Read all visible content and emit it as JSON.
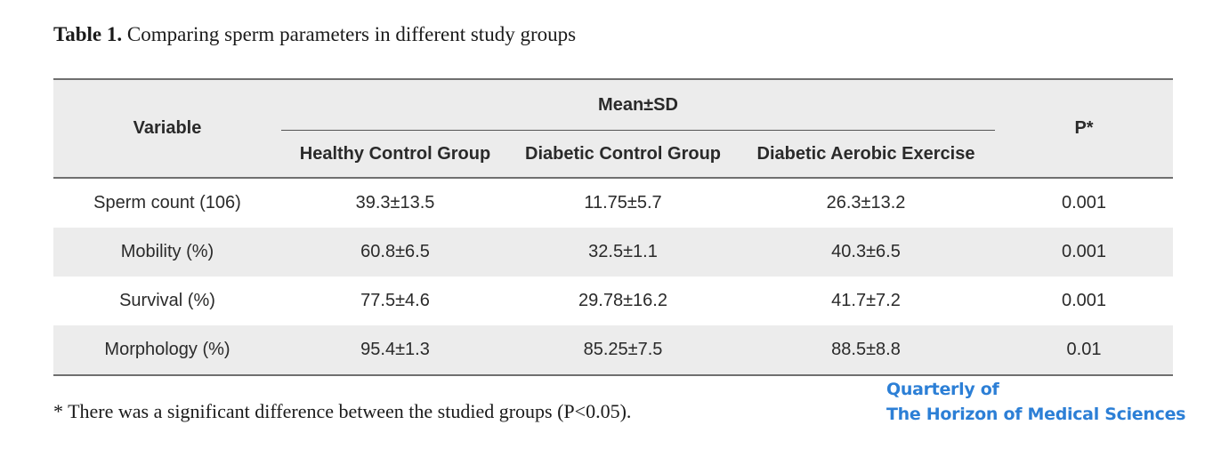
{
  "caption": {
    "label": "Table 1.",
    "text": " Comparing sperm parameters in different study groups"
  },
  "table": {
    "header_variable": "Variable",
    "header_mean": "Mean±SD",
    "header_p": "P*",
    "groups": [
      "Healthy Control Group",
      "Diabetic Control Group",
      "Diabetic Aerobic Exercise"
    ],
    "rows": [
      {
        "variable": "Sperm count (106)",
        "healthy": "39.3±13.5",
        "diabetic": "11.75±5.7",
        "exercise": "26.3±13.2",
        "p": "0.001"
      },
      {
        "variable": "Mobility (%)",
        "healthy": "60.8±6.5",
        "diabetic": "32.5±1.1",
        "exercise": "40.3±6.5",
        "p": "0.001"
      },
      {
        "variable": "Survival (%)",
        "healthy": "77.5±4.6",
        "diabetic": "29.78±16.2",
        "exercise": "41.7±7.2",
        "p": "0.001"
      },
      {
        "variable": "Morphology (%)",
        "healthy": "95.4±1.3",
        "diabetic": "85.25±7.5",
        "exercise": "88.5±8.8",
        "p": "0.01"
      }
    ]
  },
  "footnote": "* There was a significant difference between the studied groups (P<0.05).",
  "brand": {
    "line1": "Quarterly of",
    "line2": "The Horizon of Medical Sciences",
    "color": "#2c7fd6"
  },
  "colors": {
    "header_bg": "#ececec",
    "rule": "#6f6f6f"
  }
}
